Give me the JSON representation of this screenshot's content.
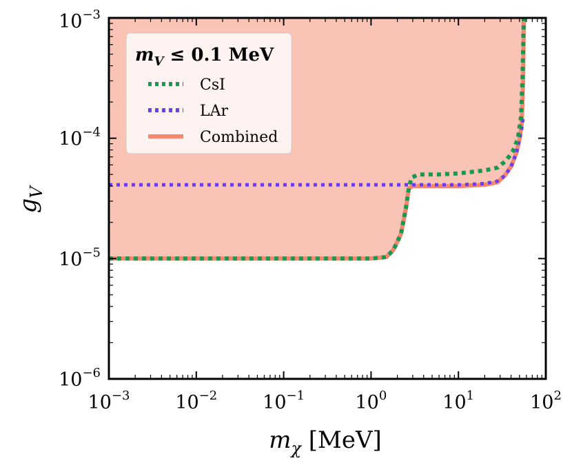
{
  "chart_data": {
    "type": "line",
    "title": "",
    "xlabel": "m_χ [MeV]",
    "ylabel": "g_V",
    "xscale": "log",
    "yscale": "log",
    "xlim": [
      0.001,
      100
    ],
    "ylim": [
      1e-06,
      0.001
    ],
    "x_ticks": [
      {
        "base": "10",
        "exp": "−3",
        "value": 0.001
      },
      {
        "base": "10",
        "exp": "−2",
        "value": 0.01
      },
      {
        "base": "10",
        "exp": "−1",
        "value": 0.1
      },
      {
        "base": "10",
        "exp": "0",
        "value": 1
      },
      {
        "base": "10",
        "exp": "1",
        "value": 10
      },
      {
        "base": "10",
        "exp": "2",
        "value": 100
      }
    ],
    "y_ticks": [
      {
        "base": "10",
        "exp": "−6",
        "value": 1e-06
      },
      {
        "base": "10",
        "exp": "−5",
        "value": 1e-05
      },
      {
        "base": "10",
        "exp": "−4",
        "value": 0.0001
      },
      {
        "base": "10",
        "exp": "−3",
        "value": 0.001
      }
    ],
    "legend": {
      "title": "m_V ≤ 0.1 MeV",
      "title_parts": {
        "sym": "m",
        "sub": "V",
        "rest": " ≤ 0.1 MeV"
      },
      "position": "top-left",
      "entries": [
        "CsI",
        "LAr",
        "Combined"
      ]
    },
    "xlabel_parts": {
      "sym": "m",
      "sub": "χ",
      "rest": " [MeV]"
    },
    "ylabel_parts": {
      "sym": "g",
      "sub": "V"
    },
    "colors": {
      "CsI": "#1a9850",
      "LAr": "#6a3df0",
      "Combined": "#f4876e",
      "fill": "#f9c4b5"
    },
    "series": [
      {
        "name": "CsI",
        "style": "dotted",
        "x": [
          0.001,
          0.003,
          0.01,
          0.03,
          0.1,
          0.3,
          1,
          1.5,
          1.8,
          2.2,
          2.5,
          2.7,
          2.9,
          3.5,
          6,
          10,
          20,
          28,
          35,
          42,
          48,
          52,
          54,
          56
        ],
        "y": [
          1e-05,
          1e-05,
          1e-05,
          1e-05,
          1e-05,
          1e-05,
          1e-05,
          1.03e-05,
          1.18e-05,
          1.6e-05,
          2.6e-05,
          3.8e-05,
          4.7e-05,
          5e-05,
          5e-05,
          5.1e-05,
          5.4e-05,
          5.7e-05,
          6.5e-05,
          7.8e-05,
          0.0001,
          0.00015,
          0.0003,
          0.001
        ]
      },
      {
        "name": "LAr",
        "style": "dotted",
        "x": [
          0.001,
          0.01,
          0.1,
          1,
          2.5,
          3,
          10,
          20,
          28,
          34,
          40,
          46,
          50,
          53,
          55
        ],
        "y": [
          4.1e-05,
          4.1e-05,
          4.1e-05,
          4.1e-05,
          4.1e-05,
          4.1e-05,
          4.1e-05,
          4.2e-05,
          4.4e-05,
          4.9e-05,
          5.8e-05,
          7.5e-05,
          9.8e-05,
          0.00012,
          0.00015
        ]
      },
      {
        "name": "Combined",
        "style": "solid",
        "x": [
          0.001,
          0.003,
          0.01,
          0.03,
          0.1,
          0.3,
          1,
          1.5,
          1.8,
          2.2,
          2.5,
          2.7,
          3,
          6,
          10,
          20,
          28,
          34,
          40,
          46,
          50,
          53,
          55,
          56
        ],
        "y": [
          1e-05,
          1e-05,
          1e-05,
          1e-05,
          1e-05,
          1e-05,
          1e-05,
          1.03e-05,
          1.18e-05,
          1.6e-05,
          2.6e-05,
          3.8e-05,
          4e-05,
          4e-05,
          4e-05,
          4.1e-05,
          4.3e-05,
          4.9e-05,
          5.8e-05,
          7.5e-05,
          9.8e-05,
          0.00013,
          0.0003,
          0.001
        ]
      }
    ]
  }
}
